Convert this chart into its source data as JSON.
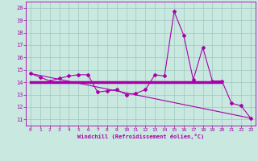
{
  "x_values": [
    0,
    1,
    2,
    3,
    4,
    5,
    6,
    7,
    8,
    9,
    10,
    11,
    12,
    13,
    14,
    15,
    16,
    17,
    18,
    19,
    20,
    21,
    22,
    23
  ],
  "line1": [
    14.7,
    14.4,
    14.1,
    14.3,
    14.5,
    14.6,
    14.6,
    13.2,
    13.3,
    13.4,
    13.0,
    13.1,
    13.4,
    14.6,
    14.5,
    19.7,
    17.8,
    14.2,
    16.8,
    14.1,
    14.1,
    12.3,
    12.1,
    11.1
  ],
  "line2_start_x": 0,
  "line2_end_x": 23,
  "line2_start_y": 14.7,
  "line2_end_y": 11.1,
  "line3_start_x": 0,
  "line3_end_x": 20,
  "line3_start_y": 14.0,
  "line3_end_y": 14.0,
  "background_color": "#c8e8e0",
  "grid_color": "#a0c8c0",
  "line_color": "#aa00aa",
  "xlabel": "Windchill (Refroidissement éolien,°C)",
  "xlim": [
    -0.5,
    23.5
  ],
  "ylim": [
    10.5,
    20.5
  ],
  "yticks": [
    11,
    12,
    13,
    14,
    15,
    16,
    17,
    18,
    19,
    20
  ],
  "xticks": [
    0,
    1,
    2,
    3,
    4,
    5,
    6,
    7,
    8,
    9,
    10,
    11,
    12,
    13,
    14,
    15,
    16,
    17,
    18,
    19,
    20,
    21,
    22,
    23
  ]
}
